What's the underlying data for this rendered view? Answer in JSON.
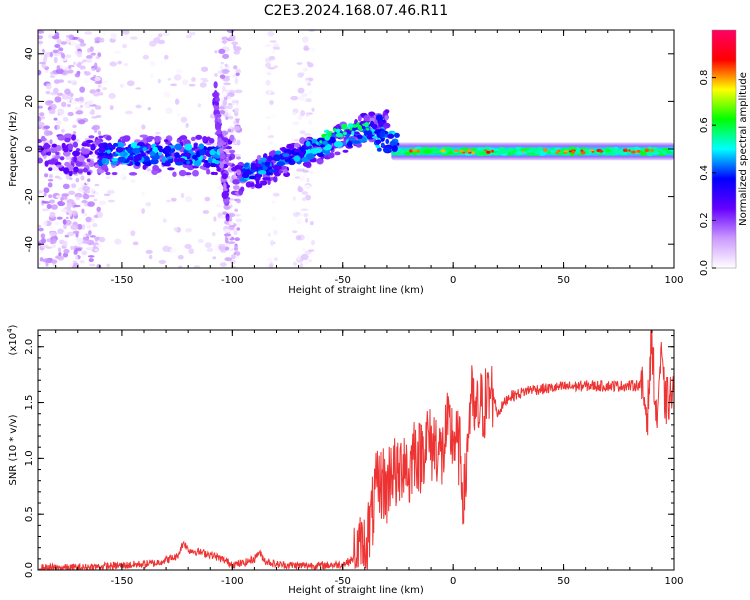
{
  "title": "C2E3.2024.168.07.46.R11",
  "chart_data": [
    {
      "type": "heatmap",
      "xlabel": "Height of straight line (km)",
      "ylabel": "Frequency (Hz)",
      "xlim": [
        -188,
        100
      ],
      "ylim": [
        -50,
        50
      ],
      "x_ticks": [
        "-150",
        "-100",
        "-50",
        "0",
        "50",
        "100"
      ],
      "y_ticks": [
        "40",
        "20",
        "0",
        "-20",
        "-40"
      ],
      "colorbar": {
        "label": "Normalized spectral amplitude",
        "range": [
          0,
          1
        ],
        "ticks": [
          "0.0",
          "0.2",
          "0.4",
          "0.6",
          "0.8"
        ],
        "colors": [
          "#ffffff",
          "#cc99ff",
          "#6600ff",
          "#0000ff",
          "#00ffff",
          "#00ff00",
          "#ffff00",
          "#ff0000",
          "#ff0066"
        ]
      },
      "features": [
        {
          "x_range": [
            -188,
            -160
          ],
          "freq_range": [
            -50,
            50
          ],
          "amplitude": 0.1
        },
        {
          "x_range": [
            -160,
            -100
          ],
          "freq_center": -3,
          "amplitude": 0.35
        },
        {
          "x_range": [
            -100,
            -30
          ],
          "freq_center_start": -10,
          "freq_center_end": 12,
          "amplitude": 0.4
        },
        {
          "x_range": [
            -30,
            100
          ],
          "freq_center": -1,
          "amplitude": 0.75
        }
      ]
    },
    {
      "type": "line",
      "xlabel": "Height of straight line (km)",
      "ylabel": "SNR (10 * v/v)",
      "y_multiplier": "(x10",
      "y_multiplier_exp": "4",
      "y_multiplier_close": ")",
      "xlim": [
        -188,
        100
      ],
      "ylim": [
        0,
        2.15
      ],
      "x_ticks": [
        "-150",
        "-100",
        "-50",
        "0",
        "50",
        "100"
      ],
      "y_ticks": [
        "0.0",
        "0.5",
        "1.0",
        "1.5",
        "2.0"
      ],
      "color": "#ee3333",
      "series": [
        {
          "x": [
            -188,
            -170,
            -150,
            -135,
            -125,
            -122,
            -120,
            -115,
            -110,
            -105,
            -100,
            -95,
            -90,
            -88,
            -85,
            -80,
            -70,
            -60,
            -50,
            -45,
            -40,
            -37,
            -35,
            -32,
            -30,
            -28,
            -25,
            -22,
            -20,
            -18,
            -15,
            -12,
            -10,
            -8,
            -5,
            -3,
            0,
            3,
            5,
            7,
            8,
            10,
            12,
            15,
            18,
            20,
            25,
            30,
            35,
            40,
            50,
            60,
            70,
            80,
            85,
            88,
            90,
            92,
            94,
            96,
            100
          ],
          "y": [
            0.02,
            0.02,
            0.04,
            0.06,
            0.12,
            0.25,
            0.18,
            0.16,
            0.14,
            0.1,
            0.05,
            0.06,
            0.1,
            0.16,
            0.08,
            0.05,
            0.04,
            0.04,
            0.05,
            0.1,
            0.2,
            0.45,
            0.7,
            0.8,
            0.7,
            0.95,
            0.8,
            1.05,
            0.8,
            1.1,
            1.0,
            1.2,
            1.1,
            1.15,
            1.0,
            1.25,
            1.2,
            1.05,
            0.6,
            1.3,
            1.55,
            1.35,
            1.45,
            1.5,
            1.6,
            1.4,
            1.55,
            1.58,
            1.62,
            1.62,
            1.64,
            1.65,
            1.65,
            1.65,
            1.66,
            1.4,
            2.1,
            1.3,
            1.9,
            1.5,
            1.58
          ]
        }
      ]
    }
  ]
}
